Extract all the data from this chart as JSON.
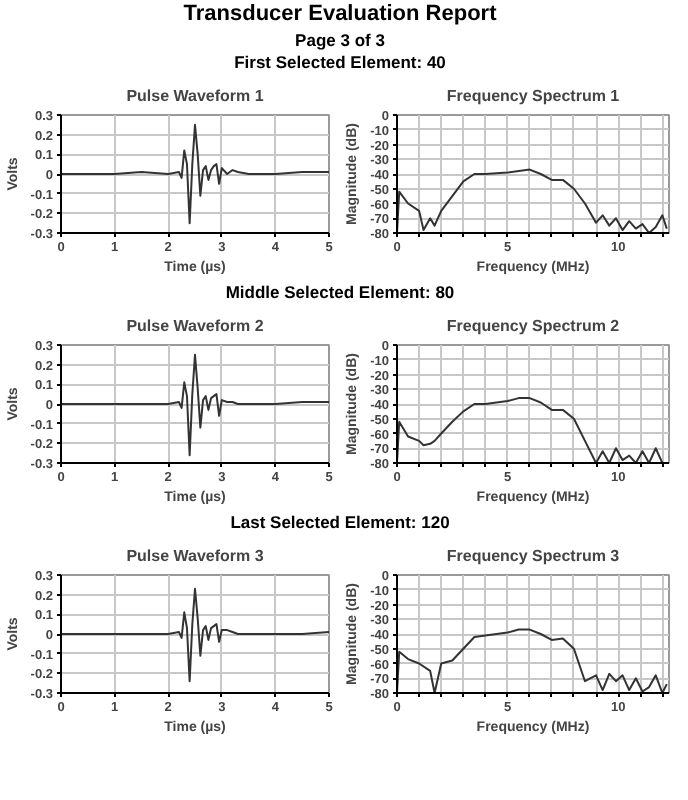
{
  "chart_data": [
    {
      "type": "line",
      "title": "Pulse Waveform 1",
      "annotations": [
        "Transducer Evaluation Report",
        "Page 3 of 3",
        "First Selected Element: 40"
      ],
      "xlabel": "Time (µs)",
      "ylabel": "Volts",
      "xlim": [
        0,
        5
      ],
      "xticks": [
        0,
        1,
        2,
        3,
        4,
        5
      ],
      "ylim": [
        -0.3,
        0.3
      ],
      "yticks": [
        -0.3,
        -0.2,
        -0.1,
        0,
        0.1,
        0.2,
        0.3
      ],
      "grid": true,
      "marker": "none",
      "line_style": "solid",
      "series": [
        {
          "color": "#333333",
          "x": [
            0,
            0.5,
            1,
            1.5,
            2,
            2.2,
            2.25,
            2.3,
            2.35,
            2.4,
            2.45,
            2.5,
            2.55,
            2.6,
            2.65,
            2.7,
            2.75,
            2.8,
            2.85,
            2.9,
            2.95,
            3.0,
            3.1,
            3.2,
            3.3,
            3.5,
            4,
            4.5,
            5
          ],
          "values": [
            0,
            0,
            0,
            0.01,
            0,
            0.01,
            -0.02,
            0.12,
            0.05,
            -0.25,
            0.05,
            0.25,
            0.1,
            -0.11,
            0.02,
            0.04,
            -0.03,
            0.02,
            0.04,
            0.05,
            -0.05,
            0.03,
            0,
            0.02,
            0.01,
            0,
            0,
            0.01,
            0.01
          ]
        }
      ]
    },
    {
      "type": "line",
      "title": "Frequency Spectrum 1",
      "xlabel": "Frequency (MHz)",
      "ylabel": "Magnitude (dB)",
      "xlim": [
        0,
        12.3
      ],
      "xticks": [
        0,
        {
          "value": 1,
          "label": null
        },
        {
          "value": 2,
          "label": null
        },
        {
          "value": 3,
          "label": null
        },
        {
          "value": 4,
          "label": null
        },
        5,
        {
          "value": 6,
          "label": null
        },
        {
          "value": 7,
          "label": null
        },
        {
          "value": 8,
          "label": null
        },
        {
          "value": 9,
          "label": null
        },
        10,
        {
          "value": 11,
          "label": null
        },
        {
          "value": 12,
          "label": null
        }
      ],
      "ylim": [
        -80,
        0
      ],
      "yticks": [
        -80,
        -70,
        -60,
        -50,
        -40,
        -30,
        -20,
        -10,
        0
      ],
      "grid": true,
      "marker": "none",
      "line_style": "solid",
      "series": [
        {
          "color": "#333333",
          "x": [
            0,
            0.1,
            0.5,
            1.0,
            1.2,
            1.5,
            1.7,
            2,
            2.5,
            3,
            3.5,
            4,
            5,
            6,
            6.5,
            7,
            7.5,
            8,
            8.5,
            9,
            9.3,
            9.6,
            9.9,
            10.2,
            10.5,
            10.8,
            11.1,
            11.4,
            11.7,
            12,
            12.2
          ],
          "values": [
            -80,
            -52,
            -60,
            -65,
            -78,
            -70,
            -75,
            -65,
            -55,
            -45,
            -40,
            -40,
            -39,
            -37,
            -40,
            -44,
            -44,
            -50,
            -60,
            -73,
            -68,
            -75,
            -70,
            -78,
            -72,
            -77,
            -74,
            -80,
            -76,
            -68,
            -77
          ]
        }
      ]
    },
    {
      "type": "line",
      "title": "Pulse Waveform 2",
      "annotations": [
        "Middle Selected Element: 80"
      ],
      "xlabel": "Time (µs)",
      "ylabel": "Volts",
      "xlim": [
        0,
        5
      ],
      "xticks": [
        0,
        1,
        2,
        3,
        4,
        5
      ],
      "ylim": [
        -0.3,
        0.3
      ],
      "yticks": [
        -0.3,
        -0.2,
        -0.1,
        0,
        0.1,
        0.2,
        0.3
      ],
      "grid": true,
      "marker": "none",
      "line_style": "solid",
      "series": [
        {
          "color": "#333333",
          "x": [
            0,
            0.5,
            1,
            1.5,
            2,
            2.2,
            2.25,
            2.3,
            2.35,
            2.4,
            2.45,
            2.5,
            2.55,
            2.6,
            2.65,
            2.7,
            2.75,
            2.8,
            2.85,
            2.9,
            2.95,
            3.0,
            3.1,
            3.2,
            3.3,
            3.5,
            4,
            4.5,
            5
          ],
          "values": [
            0,
            0,
            0,
            0,
            0,
            0.01,
            -0.02,
            0.11,
            0.04,
            -0.26,
            0.05,
            0.25,
            0.08,
            -0.12,
            0.02,
            0.04,
            -0.03,
            0.03,
            0.04,
            0.05,
            -0.06,
            0.02,
            0.01,
            0.01,
            0,
            0,
            0,
            0.01,
            0.01
          ]
        }
      ]
    },
    {
      "type": "line",
      "title": "Frequency Spectrum 2",
      "xlabel": "Frequency (MHz)",
      "ylabel": "Magnitude (dB)",
      "xlim": [
        0,
        12.3
      ],
      "xticks": [
        0,
        {
          "value": 1,
          "label": null
        },
        {
          "value": 2,
          "label": null
        },
        {
          "value": 3,
          "label": null
        },
        {
          "value": 4,
          "label": null
        },
        5,
        {
          "value": 6,
          "label": null
        },
        {
          "value": 7,
          "label": null
        },
        {
          "value": 8,
          "label": null
        },
        {
          "value": 9,
          "label": null
        },
        10,
        {
          "value": 11,
          "label": null
        },
        {
          "value": 12,
          "label": null
        }
      ],
      "ylim": [
        -80,
        0
      ],
      "yticks": [
        -80,
        -70,
        -60,
        -50,
        -40,
        -30,
        -20,
        -10,
        0
      ],
      "grid": true,
      "marker": "none",
      "line_style": "solid",
      "series": [
        {
          "color": "#333333",
          "x": [
            0,
            0.1,
            0.5,
            1.0,
            1.2,
            1.5,
            1.7,
            2,
            2.5,
            3,
            3.5,
            4,
            5,
            5.5,
            6,
            6.5,
            7,
            7.5,
            8,
            8.5,
            9,
            9.3,
            9.6,
            9.9,
            10.2,
            10.5,
            10.8,
            11.1,
            11.4,
            11.7,
            12
          ],
          "values": [
            -80,
            -52,
            -62,
            -65,
            -68,
            -67,
            -65,
            -60,
            -52,
            -45,
            -40,
            -40,
            -38,
            -36,
            -36,
            -39,
            -44,
            -44,
            -50,
            -65,
            -80,
            -72,
            -80,
            -70,
            -78,
            -75,
            -80,
            -72,
            -80,
            -70,
            -80
          ]
        }
      ]
    },
    {
      "type": "line",
      "title": "Pulse Waveform 3",
      "annotations": [
        "Last Selected Element: 120"
      ],
      "xlabel": "Time (µs)",
      "ylabel": "Volts",
      "xlim": [
        0,
        5
      ],
      "xticks": [
        0,
        1,
        2,
        3,
        4,
        5
      ],
      "ylim": [
        -0.3,
        0.3
      ],
      "yticks": [
        -0.3,
        -0.2,
        -0.1,
        0,
        0.1,
        0.2,
        0.3
      ],
      "grid": true,
      "marker": "none",
      "line_style": "solid",
      "series": [
        {
          "color": "#333333",
          "x": [
            0,
            0.5,
            1,
            1.5,
            2,
            2.2,
            2.25,
            2.3,
            2.35,
            2.4,
            2.45,
            2.5,
            2.55,
            2.6,
            2.65,
            2.7,
            2.75,
            2.8,
            2.85,
            2.9,
            2.95,
            3.0,
            3.1,
            3.2,
            3.3,
            3.5,
            4,
            4.5,
            5
          ],
          "values": [
            0,
            0,
            0,
            0,
            0,
            0.01,
            -0.02,
            0.11,
            0.03,
            -0.24,
            0.05,
            0.23,
            0.08,
            -0.11,
            0.02,
            0.04,
            -0.03,
            0.03,
            0.04,
            0.05,
            -0.04,
            0.02,
            0.02,
            0.01,
            0,
            0,
            0,
            0,
            0.01
          ]
        }
      ]
    },
    {
      "type": "line",
      "title": "Frequency Spectrum 3",
      "xlabel": "Frequency (MHz)",
      "ylabel": "Magnitude (dB)",
      "xlim": [
        0,
        12.3
      ],
      "xticks": [
        0,
        {
          "value": 1,
          "label": null
        },
        {
          "value": 2,
          "label": null
        },
        {
          "value": 3,
          "label": null
        },
        {
          "value": 4,
          "label": null
        },
        5,
        {
          "value": 6,
          "label": null
        },
        {
          "value": 7,
          "label": null
        },
        {
          "value": 8,
          "label": null
        },
        {
          "value": 9,
          "label": null
        },
        10,
        {
          "value": 11,
          "label": null
        },
        {
          "value": 12,
          "label": null
        }
      ],
      "ylim": [
        -80,
        0
      ],
      "yticks": [
        -80,
        -70,
        -60,
        -50,
        -40,
        -30,
        -20,
        -10,
        0
      ],
      "grid": true,
      "marker": "none",
      "line_style": "solid",
      "series": [
        {
          "color": "#333333",
          "x": [
            0,
            0.1,
            0.5,
            1,
            1.5,
            1.7,
            2,
            2.5,
            3,
            3.5,
            4,
            5,
            5.5,
            6,
            6.5,
            7,
            7.5,
            8,
            8.5,
            9,
            9.3,
            9.6,
            9.9,
            10.2,
            10.5,
            10.8,
            11.1,
            11.4,
            11.7,
            12,
            12.2
          ],
          "values": [
            -80,
            -52,
            -57,
            -60,
            -65,
            -80,
            -60,
            -58,
            -50,
            -42,
            -41,
            -39,
            -37,
            -37,
            -40,
            -44,
            -43,
            -50,
            -72,
            -68,
            -78,
            -67,
            -72,
            -68,
            -78,
            -70,
            -79,
            -76,
            -68,
            -80,
            -74
          ]
        }
      ]
    }
  ]
}
